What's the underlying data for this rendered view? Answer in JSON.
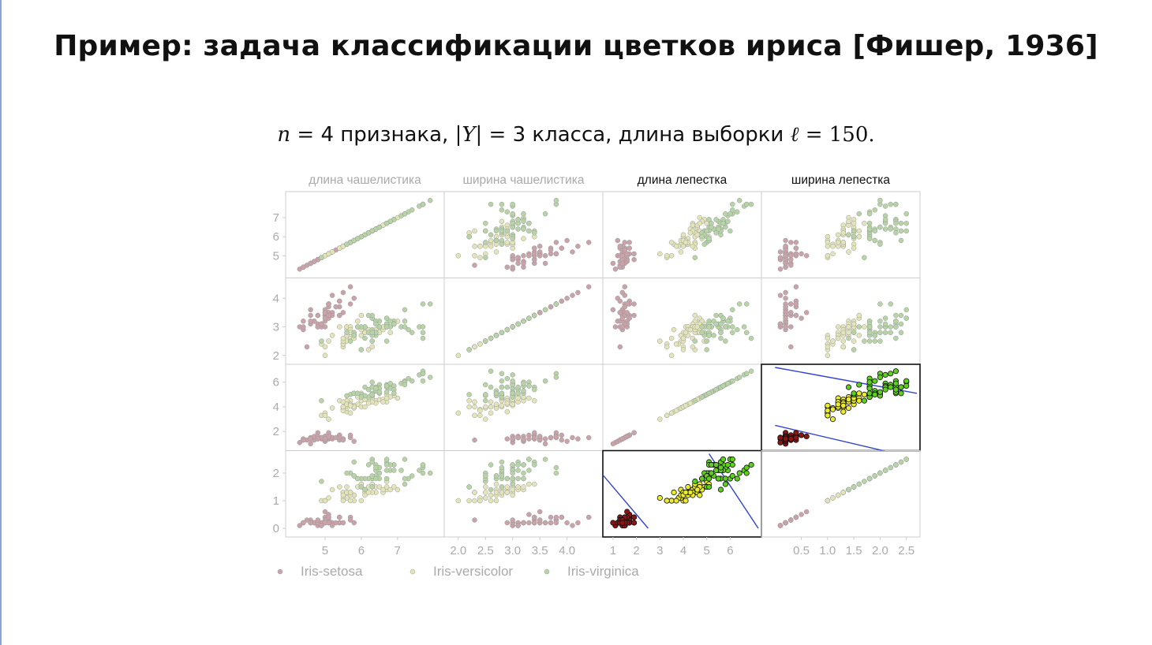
{
  "slide": {
    "title": "Пример: задача классификации цветков ириса [Фишер, 1936]",
    "subtitle": {
      "n_var": "n",
      "eq": "=",
      "n_value": "4",
      "n_text": "признака,",
      "y_var": "|Y|",
      "y_value": "3",
      "y_text": "класса, длина выборки",
      "l_var": "ℓ",
      "l_value": "150."
    }
  },
  "chart_data": {
    "type": "scatter",
    "variables": [
      "длина чашелистика",
      "ширина чашелистика",
      "длина лепестка",
      "ширина лепестка"
    ],
    "highlighted_variables": [
      "длина лепестка",
      "ширина лепестка"
    ],
    "axis_ticks": [
      [
        "5",
        "6",
        "7"
      ],
      [
        "2",
        "3",
        "4"
      ],
      [
        "2",
        "4",
        "6"
      ],
      [
        "0",
        "1",
        "2"
      ]
    ],
    "bottom_tick_labels": [
      [
        "5",
        "6",
        "7"
      ],
      [
        "2.0",
        "2.5",
        "3.0",
        "3.5",
        "4.0"
      ],
      [
        "1",
        "2",
        "3",
        "4",
        "5",
        "6"
      ],
      [
        "0.5",
        "1.0",
        "1.5",
        "2.0",
        "2.5"
      ]
    ],
    "axis_ranges": [
      [
        4.0,
        8.2
      ],
      [
        1.8,
        4.6
      ],
      [
        0.7,
        7.2
      ],
      [
        -0.2,
        2.7
      ]
    ],
    "legend": [
      "Iris-setosa",
      "Iris-versicolor",
      "Iris-virginica"
    ],
    "legend_position": "bottom",
    "colors": {
      "setosa": "#c9a3a9",
      "versicolor": "#e3e5b9",
      "virginica": "#b6d4a6",
      "setosa_dark": "#8b1414",
      "versicolor_dark": "#ecec28",
      "virginica_dark": "#5fcf1e",
      "decision_line": "#3344cc",
      "grid": "#cccccc",
      "muted_text": "#aaaaaa"
    },
    "highlighted_panels": [
      [
        2,
        3
      ],
      [
        3,
        2
      ]
    ],
    "decision_lines_petal_length_vs_width": [
      {
        "p1": [
          0.0,
          2.5
        ],
        "p2": [
          2.5,
          0.0
        ]
      },
      {
        "p1": [
          5.1,
          2.7
        ],
        "p2": [
          7.2,
          0.0
        ]
      }
    ],
    "series": [
      {
        "name": "Iris-setosa",
        "values": [
          [
            5.1,
            3.5,
            1.4,
            0.2
          ],
          [
            4.9,
            3.0,
            1.4,
            0.2
          ],
          [
            4.7,
            3.2,
            1.3,
            0.2
          ],
          [
            4.6,
            3.1,
            1.5,
            0.2
          ],
          [
            5.0,
            3.6,
            1.4,
            0.2
          ],
          [
            5.4,
            3.9,
            1.7,
            0.4
          ],
          [
            4.6,
            3.4,
            1.4,
            0.3
          ],
          [
            5.0,
            3.4,
            1.5,
            0.2
          ],
          [
            4.4,
            2.9,
            1.4,
            0.2
          ],
          [
            4.9,
            3.1,
            1.5,
            0.1
          ],
          [
            5.4,
            3.7,
            1.5,
            0.2
          ],
          [
            4.8,
            3.4,
            1.6,
            0.2
          ],
          [
            4.8,
            3.0,
            1.4,
            0.1
          ],
          [
            4.3,
            3.0,
            1.1,
            0.1
          ],
          [
            5.8,
            4.0,
            1.2,
            0.2
          ],
          [
            5.7,
            4.4,
            1.5,
            0.4
          ],
          [
            5.4,
            3.9,
            1.3,
            0.4
          ],
          [
            5.1,
            3.5,
            1.4,
            0.3
          ],
          [
            5.7,
            3.8,
            1.7,
            0.3
          ],
          [
            5.1,
            3.8,
            1.5,
            0.3
          ],
          [
            5.4,
            3.4,
            1.7,
            0.2
          ],
          [
            5.1,
            3.7,
            1.5,
            0.4
          ],
          [
            4.6,
            3.6,
            1.0,
            0.2
          ],
          [
            5.1,
            3.3,
            1.7,
            0.5
          ],
          [
            4.8,
            3.4,
            1.9,
            0.2
          ],
          [
            5.0,
            3.0,
            1.6,
            0.2
          ],
          [
            5.0,
            3.4,
            1.6,
            0.4
          ],
          [
            5.2,
            3.5,
            1.5,
            0.2
          ],
          [
            5.2,
            3.4,
            1.4,
            0.2
          ],
          [
            4.7,
            3.2,
            1.6,
            0.2
          ],
          [
            4.8,
            3.1,
            1.6,
            0.2
          ],
          [
            5.4,
            3.4,
            1.5,
            0.4
          ],
          [
            5.2,
            4.1,
            1.5,
            0.1
          ],
          [
            5.5,
            4.2,
            1.4,
            0.2
          ],
          [
            4.9,
            3.1,
            1.5,
            0.1
          ],
          [
            5.0,
            3.2,
            1.2,
            0.2
          ],
          [
            5.5,
            3.5,
            1.3,
            0.2
          ],
          [
            4.9,
            3.1,
            1.5,
            0.1
          ],
          [
            4.4,
            3.0,
            1.3,
            0.2
          ],
          [
            5.1,
            3.4,
            1.5,
            0.2
          ],
          [
            5.0,
            3.5,
            1.3,
            0.3
          ],
          [
            4.5,
            2.3,
            1.3,
            0.3
          ],
          [
            4.4,
            3.2,
            1.3,
            0.2
          ],
          [
            5.0,
            3.5,
            1.6,
            0.6
          ],
          [
            5.1,
            3.8,
            1.9,
            0.4
          ],
          [
            4.8,
            3.0,
            1.4,
            0.3
          ],
          [
            5.1,
            3.8,
            1.6,
            0.2
          ],
          [
            4.6,
            3.2,
            1.4,
            0.2
          ],
          [
            5.3,
            3.7,
            1.5,
            0.2
          ],
          [
            5.0,
            3.3,
            1.4,
            0.2
          ]
        ]
      },
      {
        "name": "Iris-versicolor",
        "values": [
          [
            7.0,
            3.2,
            4.7,
            1.4
          ],
          [
            6.4,
            3.2,
            4.5,
            1.5
          ],
          [
            6.9,
            3.1,
            4.9,
            1.5
          ],
          [
            5.5,
            2.3,
            4.0,
            1.3
          ],
          [
            6.5,
            2.8,
            4.6,
            1.5
          ],
          [
            5.7,
            2.8,
            4.5,
            1.3
          ],
          [
            6.3,
            3.3,
            4.7,
            1.6
          ],
          [
            4.9,
            2.4,
            3.3,
            1.0
          ],
          [
            6.6,
            2.9,
            4.6,
            1.3
          ],
          [
            5.2,
            2.7,
            3.9,
            1.4
          ],
          [
            5.0,
            2.0,
            3.5,
            1.0
          ],
          [
            5.9,
            3.0,
            4.2,
            1.5
          ],
          [
            6.0,
            2.2,
            4.0,
            1.0
          ],
          [
            6.1,
            2.9,
            4.7,
            1.4
          ],
          [
            5.6,
            2.9,
            3.6,
            1.3
          ],
          [
            6.7,
            3.1,
            4.4,
            1.4
          ],
          [
            5.6,
            3.0,
            4.5,
            1.5
          ],
          [
            5.8,
            2.7,
            4.1,
            1.0
          ],
          [
            6.2,
            2.2,
            4.5,
            1.5
          ],
          [
            5.6,
            2.5,
            3.9,
            1.1
          ],
          [
            5.9,
            3.2,
            4.8,
            1.8
          ],
          [
            6.1,
            2.8,
            4.0,
            1.3
          ],
          [
            6.3,
            2.5,
            4.9,
            1.5
          ],
          [
            6.1,
            2.8,
            4.7,
            1.2
          ],
          [
            6.4,
            2.9,
            4.3,
            1.3
          ],
          [
            6.6,
            3.0,
            4.4,
            1.4
          ],
          [
            6.8,
            2.8,
            4.8,
            1.4
          ],
          [
            6.7,
            3.0,
            5.0,
            1.7
          ],
          [
            6.0,
            2.9,
            4.5,
            1.5
          ],
          [
            5.7,
            2.6,
            3.5,
            1.0
          ],
          [
            5.5,
            2.4,
            3.8,
            1.1
          ],
          [
            5.5,
            2.4,
            3.7,
            1.0
          ],
          [
            5.8,
            2.7,
            3.9,
            1.2
          ],
          [
            6.0,
            2.7,
            5.1,
            1.6
          ],
          [
            5.4,
            3.0,
            4.5,
            1.5
          ],
          [
            6.0,
            3.4,
            4.5,
            1.6
          ],
          [
            6.7,
            3.1,
            4.7,
            1.5
          ],
          [
            6.3,
            2.3,
            4.4,
            1.3
          ],
          [
            5.6,
            3.0,
            4.1,
            1.3
          ],
          [
            5.5,
            2.5,
            4.0,
            1.3
          ],
          [
            5.5,
            2.6,
            4.4,
            1.2
          ],
          [
            6.1,
            3.0,
            4.6,
            1.4
          ],
          [
            5.8,
            2.6,
            4.0,
            1.2
          ],
          [
            5.0,
            2.3,
            3.3,
            1.0
          ],
          [
            5.6,
            2.7,
            4.2,
            1.3
          ],
          [
            5.7,
            3.0,
            4.2,
            1.2
          ],
          [
            5.7,
            2.9,
            4.2,
            1.3
          ],
          [
            6.2,
            2.9,
            4.3,
            1.3
          ],
          [
            5.1,
            2.5,
            3.0,
            1.1
          ],
          [
            5.7,
            2.8,
            4.1,
            1.3
          ]
        ]
      },
      {
        "name": "Iris-virginica",
        "values": [
          [
            6.3,
            3.3,
            6.0,
            2.5
          ],
          [
            5.8,
            2.7,
            5.1,
            1.9
          ],
          [
            7.1,
            3.0,
            5.9,
            2.1
          ],
          [
            6.3,
            2.9,
            5.6,
            1.8
          ],
          [
            6.5,
            3.0,
            5.8,
            2.2
          ],
          [
            7.6,
            3.0,
            6.6,
            2.1
          ],
          [
            4.9,
            2.5,
            4.5,
            1.7
          ],
          [
            7.3,
            2.9,
            6.3,
            1.8
          ],
          [
            6.7,
            2.5,
            5.8,
            1.8
          ],
          [
            7.2,
            3.6,
            6.1,
            2.5
          ],
          [
            6.5,
            3.2,
            5.1,
            2.0
          ],
          [
            6.4,
            2.7,
            5.3,
            1.9
          ],
          [
            6.8,
            3.0,
            5.5,
            2.1
          ],
          [
            5.7,
            2.5,
            5.0,
            2.0
          ],
          [
            5.8,
            2.8,
            5.1,
            2.4
          ],
          [
            6.4,
            3.2,
            5.3,
            2.3
          ],
          [
            6.5,
            3.0,
            5.5,
            1.8
          ],
          [
            7.7,
            3.8,
            6.7,
            2.2
          ],
          [
            7.7,
            2.6,
            6.9,
            2.3
          ],
          [
            6.0,
            2.2,
            5.0,
            1.5
          ],
          [
            6.9,
            3.2,
            5.7,
            2.3
          ],
          [
            5.6,
            2.8,
            4.9,
            2.0
          ],
          [
            7.7,
            2.8,
            6.7,
            2.0
          ],
          [
            6.3,
            2.7,
            4.9,
            1.8
          ],
          [
            6.7,
            3.3,
            5.7,
            2.1
          ],
          [
            7.2,
            3.2,
            6.0,
            1.8
          ],
          [
            6.2,
            2.8,
            4.8,
            1.8
          ],
          [
            6.1,
            3.0,
            4.9,
            1.8
          ],
          [
            6.4,
            2.8,
            5.6,
            2.1
          ],
          [
            7.2,
            3.0,
            5.8,
            1.6
          ],
          [
            7.4,
            2.8,
            6.1,
            1.9
          ],
          [
            7.9,
            3.8,
            6.4,
            2.0
          ],
          [
            6.4,
            2.8,
            5.6,
            2.2
          ],
          [
            6.3,
            2.8,
            5.1,
            1.5
          ],
          [
            6.1,
            2.6,
            5.6,
            1.4
          ],
          [
            7.7,
            3.0,
            6.1,
            2.3
          ],
          [
            6.3,
            3.4,
            5.6,
            2.4
          ],
          [
            6.4,
            3.1,
            5.5,
            1.8
          ],
          [
            6.0,
            3.0,
            4.8,
            1.8
          ],
          [
            6.9,
            3.1,
            5.4,
            2.1
          ],
          [
            6.7,
            3.1,
            5.6,
            2.4
          ],
          [
            6.9,
            3.1,
            5.1,
            2.3
          ],
          [
            5.8,
            2.7,
            5.1,
            1.9
          ],
          [
            6.8,
            3.2,
            5.9,
            2.3
          ],
          [
            6.7,
            3.3,
            5.7,
            2.5
          ],
          [
            6.7,
            3.0,
            5.2,
            2.3
          ],
          [
            6.3,
            2.5,
            5.0,
            1.9
          ],
          [
            6.5,
            3.0,
            5.2,
            2.0
          ],
          [
            6.2,
            3.4,
            5.4,
            2.3
          ],
          [
            5.9,
            3.0,
            5.1,
            1.8
          ]
        ]
      }
    ]
  }
}
